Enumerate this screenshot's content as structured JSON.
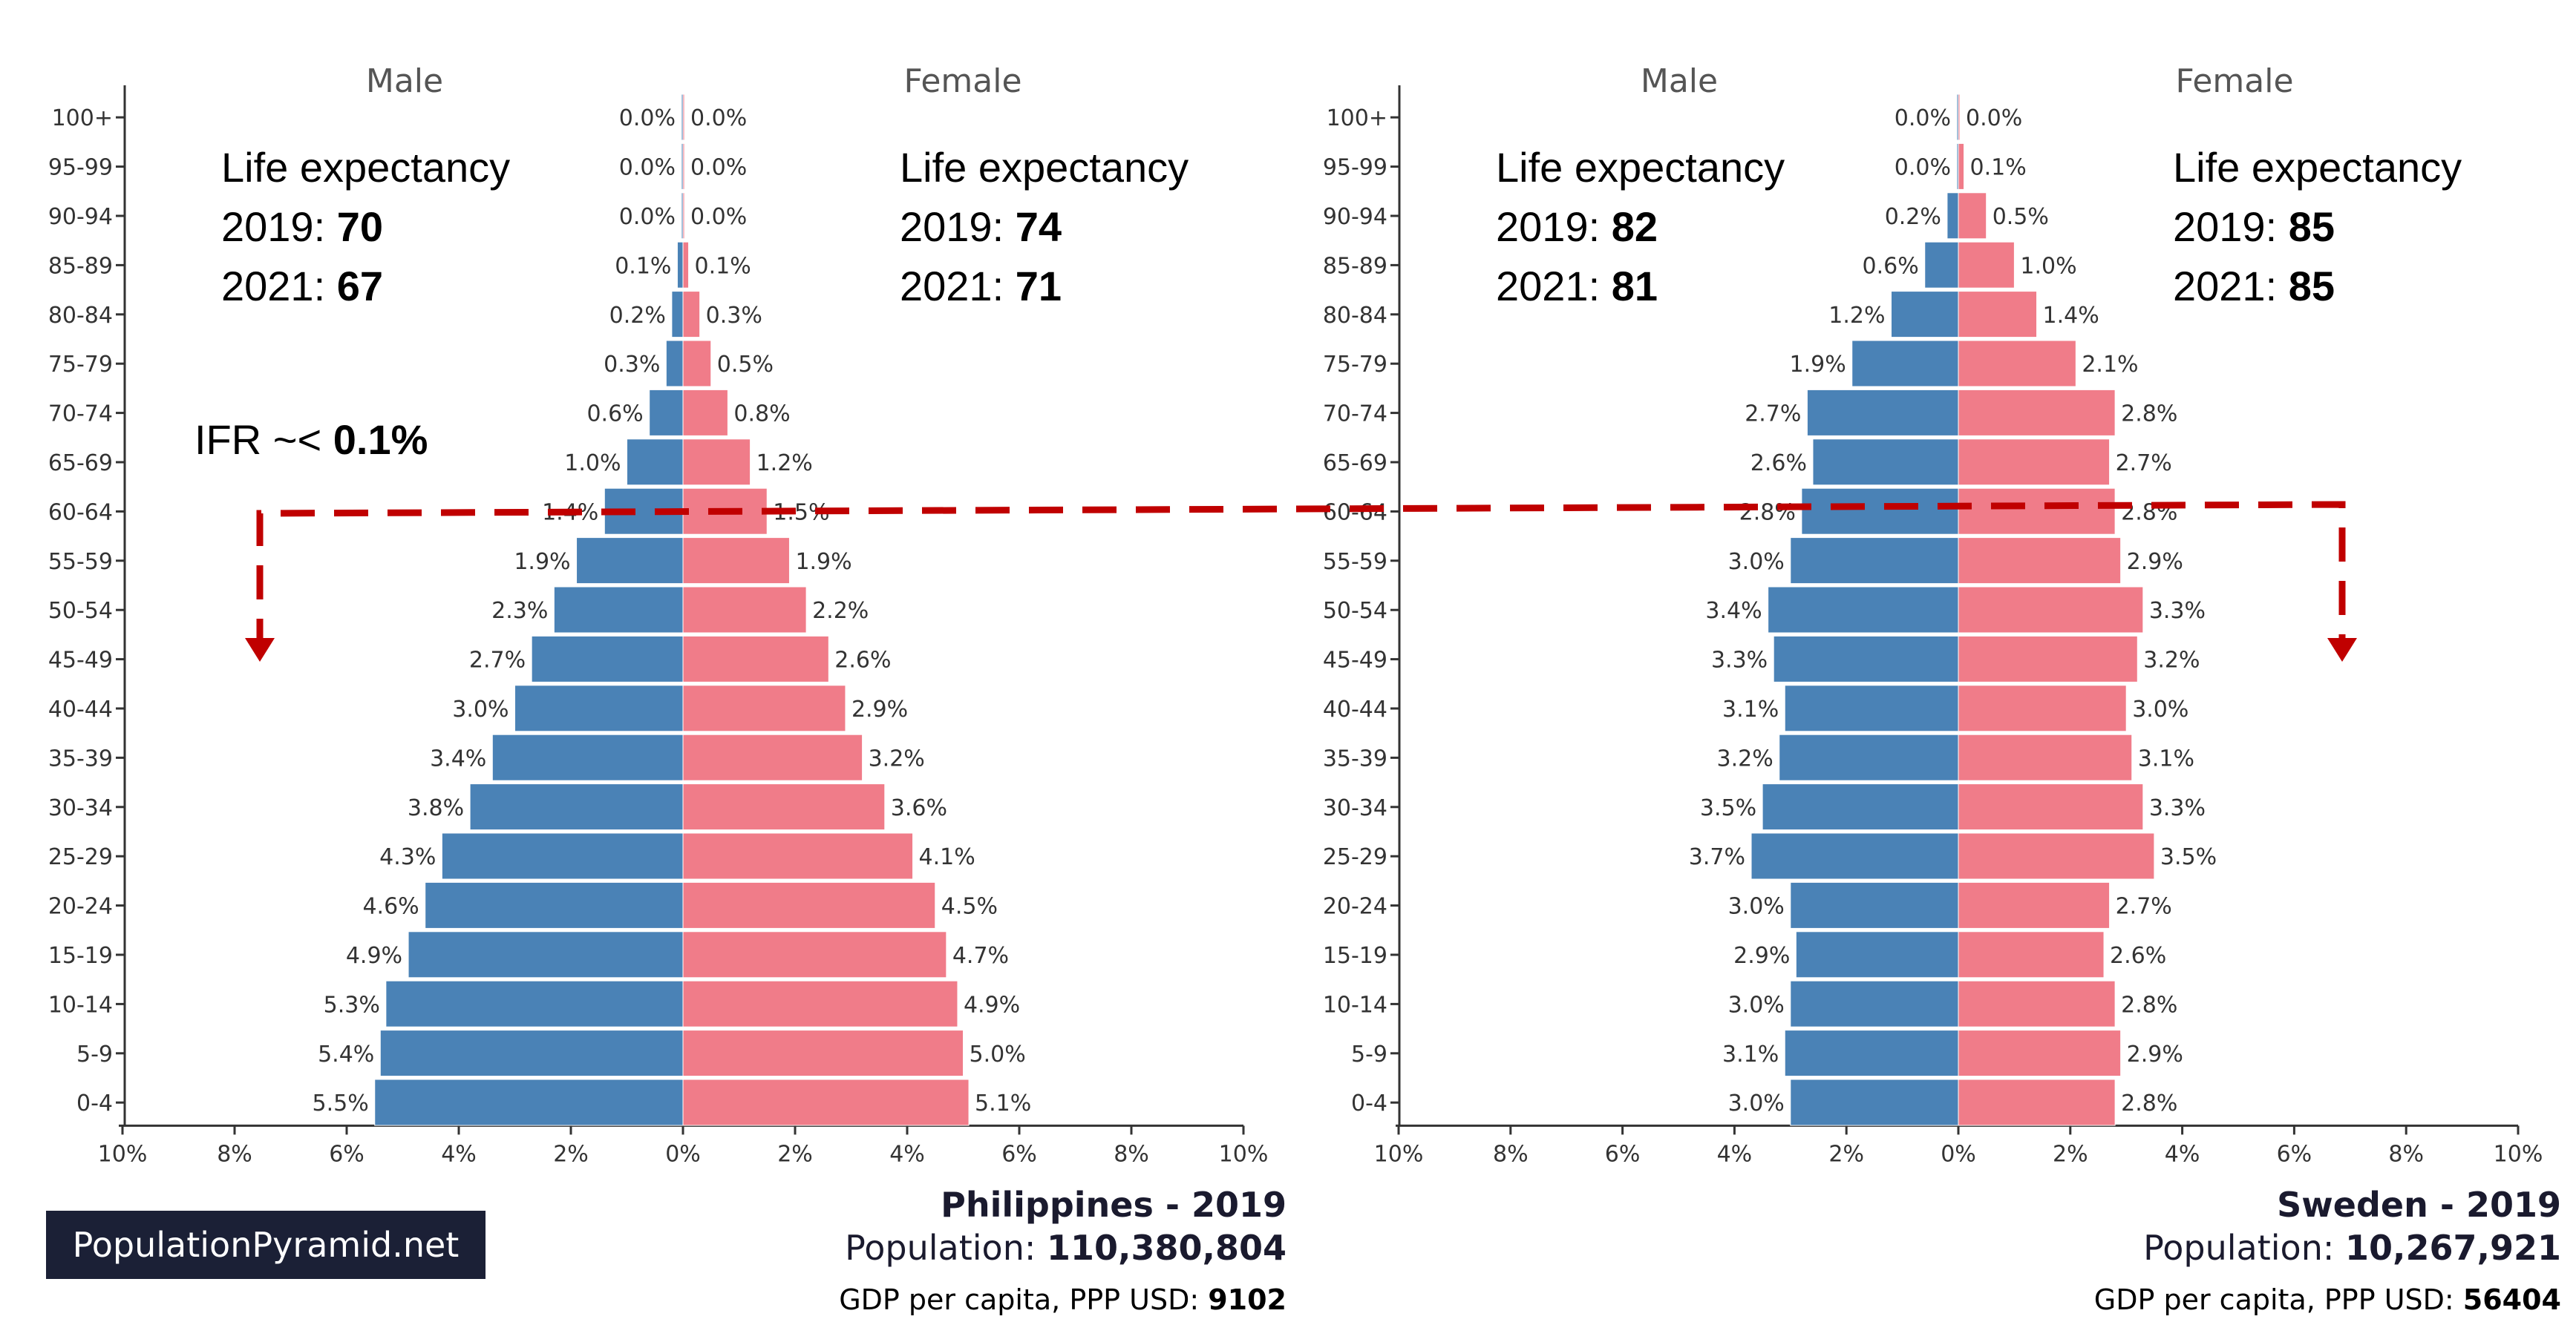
{
  "logo": "PopulationPyramid.net",
  "ifr": {
    "prefix": "IFR ~< ",
    "value": "0.1%"
  },
  "chart_data": [
    {
      "type": "bar",
      "orientation": "horizontal-pyramid",
      "title": "Philippines - 2019",
      "population_label": "Population: ",
      "population": "110,380,804",
      "gdp_label": "GDP per capita, PPP USD: ",
      "gdp": "9102",
      "male_header": "Male",
      "female_header": "Female",
      "life_expectancy": {
        "male": {
          "heading": "Life expectancy",
          "y2019_label": "2019: ",
          "y2019": "70",
          "y2021_label": "2021: ",
          "y2021": "67"
        },
        "female": {
          "heading": "Life expectancy",
          "y2019_label": "2019: ",
          "y2019": "74",
          "y2021_label": "2021: ",
          "y2021": "71"
        }
      },
      "categories": [
        "0-4",
        "5-9",
        "10-14",
        "15-19",
        "20-24",
        "25-29",
        "30-34",
        "35-39",
        "40-44",
        "45-49",
        "50-54",
        "55-59",
        "60-64",
        "65-69",
        "70-74",
        "75-79",
        "80-84",
        "85-89",
        "90-94",
        "95-99",
        "100+"
      ],
      "series": [
        {
          "name": "Male",
          "values": [
            5.5,
            5.4,
            5.3,
            4.9,
            4.6,
            4.3,
            3.8,
            3.4,
            3.0,
            2.7,
            2.3,
            1.9,
            1.4,
            1.0,
            0.6,
            0.3,
            0.2,
            0.1,
            0.0,
            0.0,
            0.0
          ]
        },
        {
          "name": "Female",
          "values": [
            5.1,
            5.0,
            4.9,
            4.7,
            4.5,
            4.1,
            3.6,
            3.2,
            2.9,
            2.6,
            2.2,
            1.9,
            1.5,
            1.2,
            0.8,
            0.5,
            0.3,
            0.1,
            0.0,
            0.0,
            0.0
          ]
        }
      ],
      "xlim": [
        -10,
        10
      ],
      "xticks": [
        "10%",
        "8%",
        "6%",
        "4%",
        "2%",
        "0%",
        "2%",
        "4%",
        "6%",
        "8%",
        "10%"
      ],
      "colors": {
        "male": "#4a82b6",
        "female": "#f07c89"
      }
    },
    {
      "type": "bar",
      "orientation": "horizontal-pyramid",
      "title": "Sweden - 2019",
      "population_label": "Population: ",
      "population": "10,267,921",
      "gdp_label": "GDP per capita, PPP USD: ",
      "gdp": "56404",
      "male_header": "Male",
      "female_header": "Female",
      "life_expectancy": {
        "male": {
          "heading": "Life expectancy",
          "y2019_label": "2019: ",
          "y2019": "82",
          "y2021_label": "2021: ",
          "y2021": "81"
        },
        "female": {
          "heading": "Life expectancy",
          "y2019_label": "2019: ",
          "y2019": "85",
          "y2021_label": "2021: ",
          "y2021": "85"
        }
      },
      "categories": [
        "0-4",
        "5-9",
        "10-14",
        "15-19",
        "20-24",
        "25-29",
        "30-34",
        "35-39",
        "40-44",
        "45-49",
        "50-54",
        "55-59",
        "60-64",
        "65-69",
        "70-74",
        "75-79",
        "80-84",
        "85-89",
        "90-94",
        "95-99",
        "100+"
      ],
      "series": [
        {
          "name": "Male",
          "values": [
            3.0,
            3.1,
            3.0,
            2.9,
            3.0,
            3.7,
            3.5,
            3.2,
            3.1,
            3.3,
            3.4,
            3.0,
            2.8,
            2.6,
            2.7,
            1.9,
            1.2,
            0.6,
            0.2,
            0.0,
            0.0
          ]
        },
        {
          "name": "Female",
          "values": [
            2.8,
            2.9,
            2.8,
            2.6,
            2.7,
            3.5,
            3.3,
            3.1,
            3.0,
            3.2,
            3.3,
            2.9,
            2.8,
            2.7,
            2.8,
            2.1,
            1.4,
            1.0,
            0.5,
            0.1,
            0.0
          ]
        }
      ],
      "xlim": [
        -10,
        10
      ],
      "xticks": [
        "10%",
        "8%",
        "6%",
        "4%",
        "2%",
        "0%",
        "2%",
        "4%",
        "6%",
        "8%",
        "10%"
      ],
      "colors": {
        "male": "#4a82b6",
        "female": "#f07c89"
      }
    }
  ],
  "threshold_line_color": "#c00000"
}
